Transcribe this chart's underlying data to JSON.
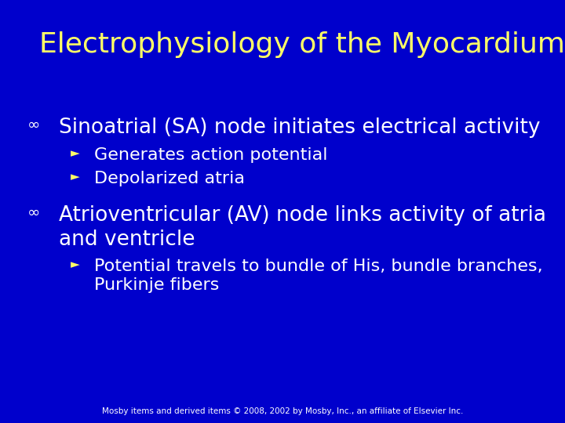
{
  "title": "Electrophysiology of the Myocardium",
  "bg_color": "#0000cc",
  "title_color": "#ffff66",
  "bullet_color": "#ffffff",
  "sub_bullet_color": "#ffff66",
  "title_fontsize": 26,
  "bullet_fontsize": 19,
  "sub_bullet_fontsize": 16,
  "footer_text": "Mosby items and derived items © 2008, 2002 by Mosby, Inc., an affiliate of Elsevier Inc.",
  "footer_color": "#ffffff",
  "footer_fontsize": 7.5,
  "bullet_marker": "∞",
  "sub_bullet_marker": "►",
  "bullets": [
    {
      "text": "Sinoatrial (SA) node initiates electrical activity",
      "sub_bullets": [
        "Generates action potential",
        "Depolarized atria"
      ]
    },
    {
      "text": "Atrioventricular (AV) node links activity of atria\nand ventricle",
      "sub_bullets": [
        "Potential travels to bundle of His, bundle branches,\nPurkinje fibers"
      ]
    }
  ]
}
